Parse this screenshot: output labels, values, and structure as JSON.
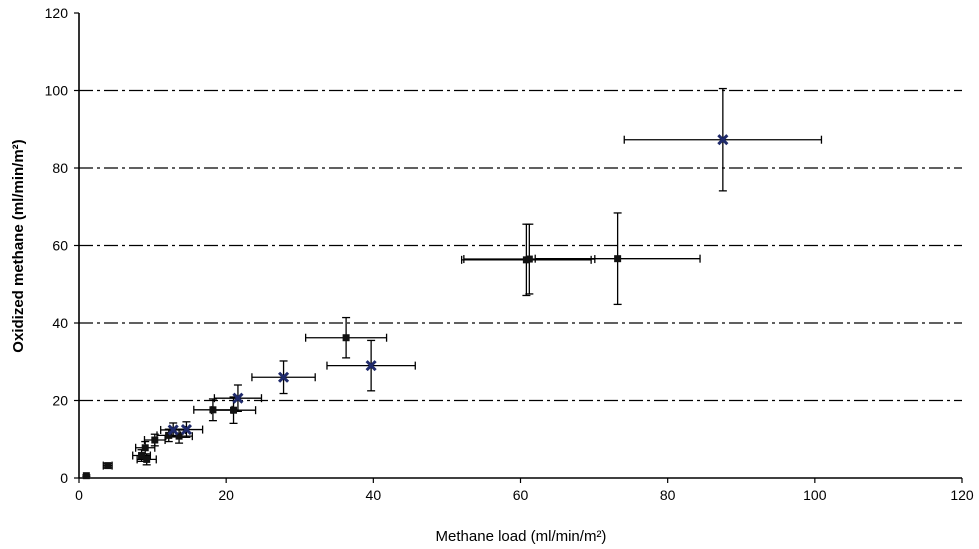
{
  "chart_data": {
    "type": "scatter",
    "title": "",
    "xlabel": "Methane load (ml/min/m²)",
    "ylabel": "Oxidized methane (ml/min/m²)",
    "xlim": [
      0,
      120
    ],
    "ylim": [
      0,
      120
    ],
    "xticks": [
      0,
      20,
      40,
      60,
      80,
      100,
      120
    ],
    "yticks": [
      0,
      20,
      40,
      60,
      80,
      100,
      120
    ],
    "grid": "horizontal dash-dot at 20, 40, 60, 80, 100",
    "gridlines_y": [
      20,
      40,
      60,
      80,
      100
    ],
    "legend": "none",
    "colors": {
      "black_series": "#111111",
      "blue_series": "#1f2a6b",
      "error_bars": "#000000",
      "grid": "#000000"
    },
    "series": [
      {
        "marker": "square",
        "color": "#111111",
        "points": [
          {
            "x": 1.0,
            "y": 0.6,
            "xerr": 0,
            "yerr": 0.2
          },
          {
            "x": 3.9,
            "y": 3.2,
            "xerr": 0.6,
            "yerr": 0.6
          },
          {
            "x": 8.5,
            "y": 5.8,
            "xerr": 1.2,
            "yerr": 1.5
          },
          {
            "x": 9.2,
            "y": 4.8,
            "xerr": 1.3,
            "yerr": 1.4
          },
          {
            "x": 9.0,
            "y": 7.8,
            "xerr": 1.3,
            "yerr": 1.6
          },
          {
            "x": 10.3,
            "y": 9.8,
            "xerr": 1.4,
            "yerr": 1.5
          },
          {
            "x": 12.2,
            "y": 11.0,
            "xerr": 1.6,
            "yerr": 1.6
          },
          {
            "x": 13.6,
            "y": 10.8,
            "xerr": 1.8,
            "yerr": 1.8
          },
          {
            "x": 18.2,
            "y": 17.6,
            "xerr": 2.6,
            "yerr": 2.8
          },
          {
            "x": 21.0,
            "y": 17.5,
            "xerr": 3.0,
            "yerr": 3.4
          },
          {
            "x": 36.3,
            "y": 36.2,
            "xerr": 5.5,
            "yerr": 5.2
          },
          {
            "x": 60.8,
            "y": 56.3,
            "xerr": 8.8,
            "yerr": 9.2
          },
          {
            "x": 61.2,
            "y": 56.5,
            "xerr": 8.9,
            "yerr": 9.0
          },
          {
            "x": 73.2,
            "y": 56.6,
            "xerr": 11.2,
            "yerr": 11.8
          }
        ]
      },
      {
        "marker": "x",
        "color": "#1f2a6b",
        "points": [
          {
            "x": 12.8,
            "y": 12.4,
            "xerr": 1.7,
            "yerr": 1.8
          },
          {
            "x": 14.6,
            "y": 12.5,
            "xerr": 2.2,
            "yerr": 2.0
          },
          {
            "x": 21.6,
            "y": 20.6,
            "xerr": 3.2,
            "yerr": 3.4
          },
          {
            "x": 27.8,
            "y": 26.0,
            "xerr": 4.3,
            "yerr": 4.2
          },
          {
            "x": 39.7,
            "y": 29.0,
            "xerr": 6.0,
            "yerr": 6.5
          },
          {
            "x": 87.5,
            "y": 87.3,
            "xerr": 13.4,
            "yerr": 13.2
          }
        ]
      }
    ]
  }
}
